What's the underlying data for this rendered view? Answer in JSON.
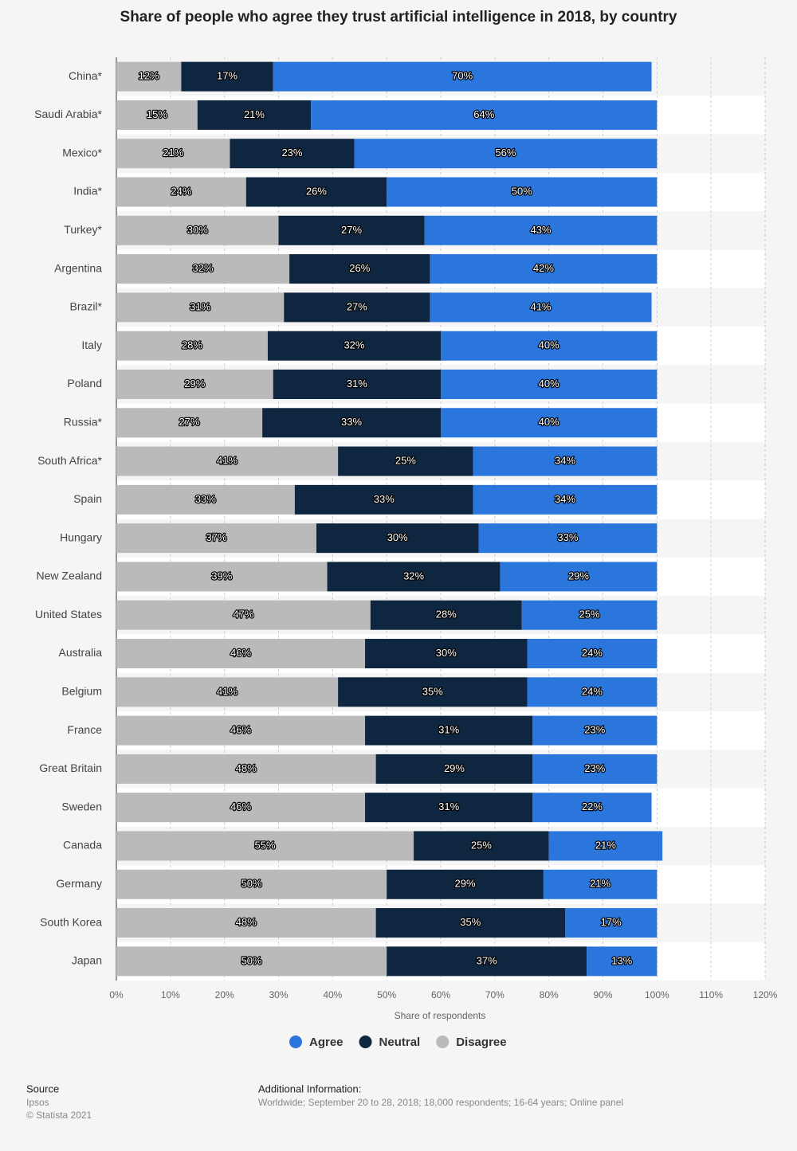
{
  "chart_data": {
    "type": "stacked-bar-horizontal",
    "title": "Share of people who agree they trust artificial intelligence in 2018, by country",
    "x_label": "Share of respondents",
    "categories": [
      "China*",
      "Saudi Arabia*",
      "Mexico*",
      "India*",
      "Turkey*",
      "Argentina",
      "Brazil*",
      "Italy",
      "Poland",
      "Russia*",
      "South Africa*",
      "Spain",
      "Hungary",
      "New Zealand",
      "United States",
      "Australia",
      "Belgium",
      "France",
      "Great Britain",
      "Sweden",
      "Canada",
      "Germany",
      "South Korea",
      "Japan"
    ],
    "series": [
      {
        "name": "Agree",
        "color": "#2a76dd",
        "values": [
          70,
          64,
          56,
          50,
          43,
          42,
          41,
          40,
          40,
          40,
          34,
          34,
          33,
          29,
          25,
          24,
          24,
          23,
          23,
          22,
          21,
          21,
          17,
          13
        ],
        "value_labels": [
          "70%",
          "64%",
          "56%",
          "50%",
          "43%",
          "42%",
          "41%",
          "40%",
          "40%",
          "40%",
          "34%",
          "34%",
          "33%",
          "29%",
          "25%",
          "24%",
          "24%",
          "23%",
          "23%",
          "22%",
          "21%",
          "21%",
          "17%",
          "13%"
        ]
      },
      {
        "name": "Neutral",
        "color": "#0f2640",
        "values": [
          17,
          21,
          23,
          26,
          27,
          26,
          27,
          32,
          31,
          33,
          25,
          33,
          30,
          32,
          28,
          30,
          35,
          31,
          29,
          31,
          25,
          29,
          35,
          37
        ],
        "value_labels": [
          "17%",
          "21%",
          "23%",
          "26%",
          "27%",
          "26%",
          "27%",
          "32%",
          "31%",
          "33%",
          "25%",
          "33%",
          "30%",
          "32%",
          "28%",
          "30%",
          "35%",
          "31%",
          "29%",
          "31%",
          "25%",
          "29%",
          "35%",
          "37%"
        ]
      },
      {
        "name": "Disagree",
        "color": "#bababa",
        "values": [
          12,
          15,
          21,
          24,
          30,
          32,
          31,
          28,
          29,
          27,
          41,
          33,
          37,
          39,
          47,
          46,
          41,
          46,
          48,
          46,
          55,
          50,
          48,
          50
        ],
        "value_labels": [
          "12%",
          "15%",
          "21%",
          "24%",
          "30%",
          "32%",
          "31%",
          "28%",
          "29%",
          "27%",
          "41%",
          "33%",
          "37%",
          "39%",
          "47%",
          "46%",
          "41%",
          "46%",
          "48%",
          "46%",
          "55%",
          "50%",
          "48%",
          "50%"
        ]
      }
    ],
    "stack_order": [
      "Disagree",
      "Neutral",
      "Agree"
    ],
    "xlim": [
      0,
      120
    ],
    "xticks": [
      {
        "value": 0,
        "label": "0%"
      },
      {
        "value": 10,
        "label": "10%"
      },
      {
        "value": 20,
        "label": "20%"
      },
      {
        "value": 30,
        "label": "30%"
      },
      {
        "value": 40,
        "label": "40%"
      },
      {
        "value": 50,
        "label": "50%"
      },
      {
        "value": 60,
        "label": "60%"
      },
      {
        "value": 70,
        "label": "70%"
      },
      {
        "value": 80,
        "label": "80%"
      },
      {
        "value": 90,
        "label": "90%"
      },
      {
        "value": 100,
        "label": "100%"
      },
      {
        "value": 110,
        "label": "110%"
      },
      {
        "value": 120,
        "label": "120%"
      }
    ],
    "grid": true,
    "legend": "bottom"
  },
  "footer": {
    "source_title": "Source",
    "source": "Ipsos",
    "copyright": "© Statista 2021",
    "info_title": "Additional Information:",
    "info": "Worldwide; September 20 to 28, 2018; 18,000 respondents; 16-64 years; Online panel"
  }
}
